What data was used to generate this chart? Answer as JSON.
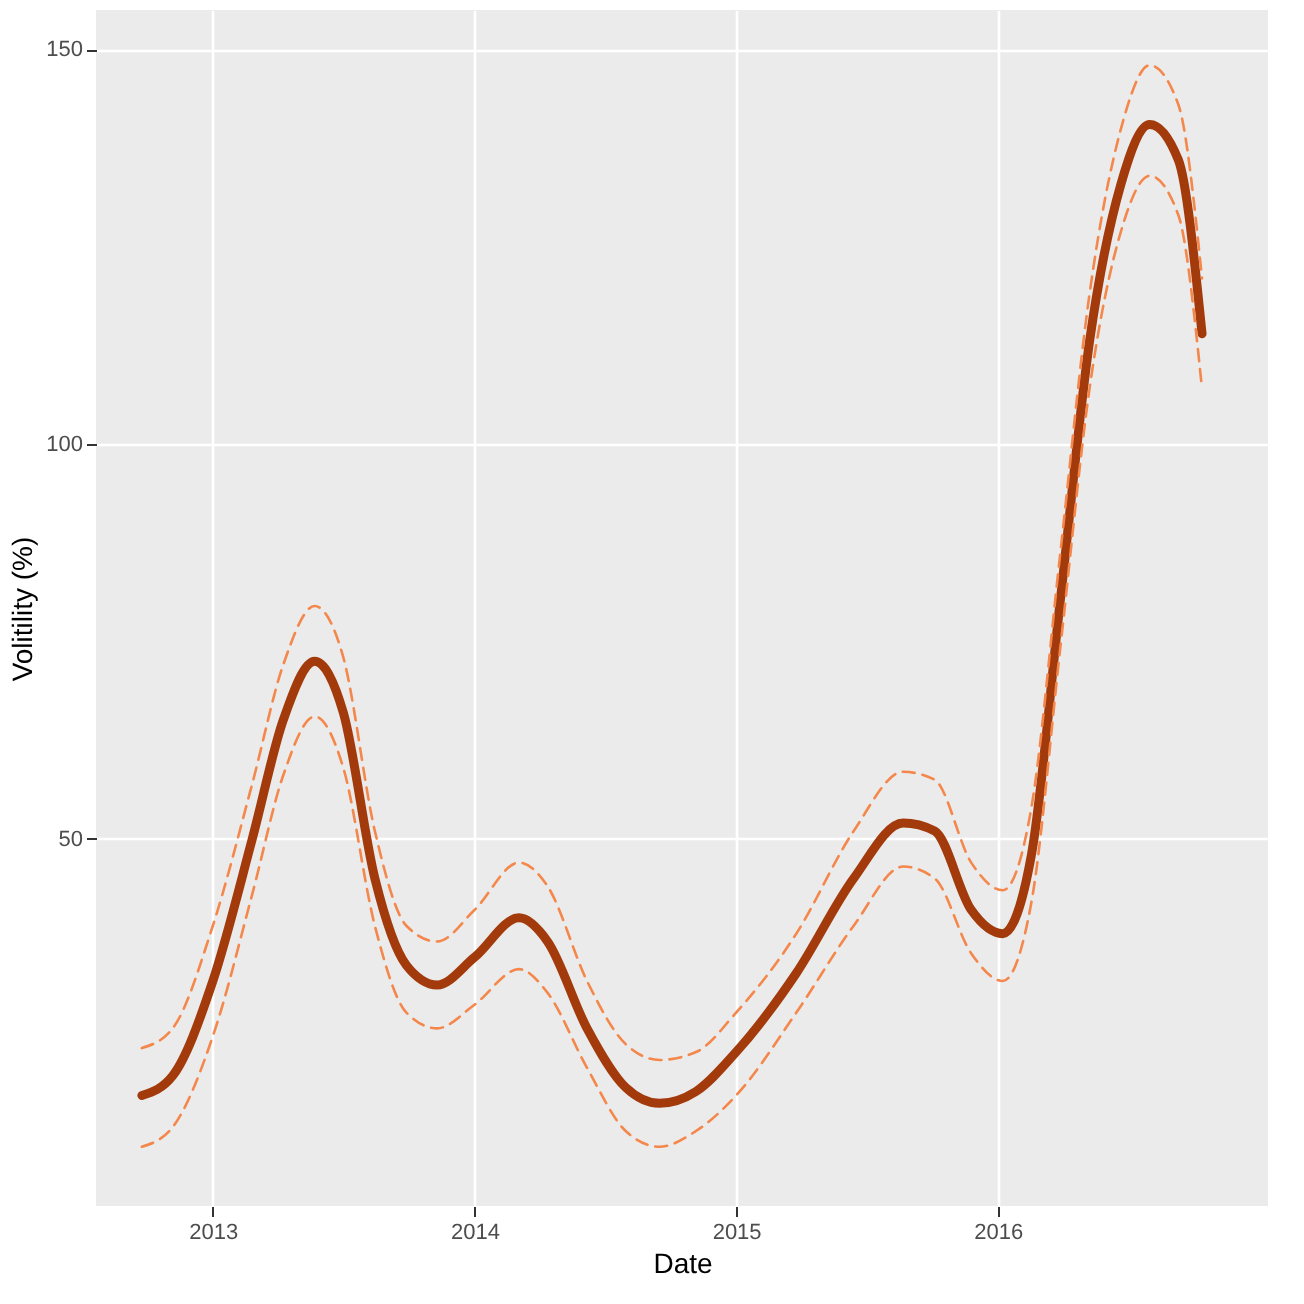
{
  "chart_data": {
    "type": "line",
    "xlabel": "Date",
    "ylabel": "Volitility (%)",
    "xlim": [
      "2012-07-22",
      "2017-01-12"
    ],
    "xticks": [
      {
        "value": "2013",
        "label": "2013"
      },
      {
        "value": "2014",
        "label": "2014"
      },
      {
        "value": "2015",
        "label": "2015"
      },
      {
        "value": "2016",
        "label": "2016"
      }
    ],
    "ylim": [
      3.5,
      155
    ],
    "yticks": [
      50,
      100,
      150
    ],
    "grid": true,
    "line_style": "solid",
    "x": [
      "2012-09-24",
      "2012-11-06",
      "2013-01-01",
      "2013-02-25",
      "2013-04-09",
      "2013-05-23",
      "2013-07-02",
      "2013-08-15",
      "2013-09-28",
      "2013-11-10",
      "2014-01-01",
      "2014-03-04",
      "2014-04-13",
      "2014-06-07",
      "2014-07-31",
      "2014-09-16",
      "2014-11-06",
      "2015-01-01",
      "2015-03-26",
      "2015-06-14",
      "2015-08-22",
      "2015-10-05",
      "2015-11-25",
      "2016-01-08",
      "2016-02-17",
      "2016-03-28",
      "2016-05-08",
      "2016-06-21",
      "2016-07-31",
      "2016-09-09",
      "2016-10-12"
    ],
    "series": [
      {
        "color": "#a33a0c",
        "values": [
          17.5,
          20,
          32,
          50,
          65,
          72.5,
          66,
          45,
          34,
          31.5,
          35,
          40,
          37,
          26,
          18.5,
          16.5,
          18,
          23,
          33,
          45,
          52,
          51,
          41,
          38,
          48,
          80,
          113,
          133,
          140.5,
          136,
          114
        ]
      },
      {
        "color": "#f4874b",
        "line_style": "dashed",
        "values": [
          23.5,
          26,
          39,
          57,
          72,
          79.5,
          73,
          51,
          39,
          37,
          41,
          47,
          44,
          32,
          24,
          22,
          23,
          28,
          38,
          51,
          58.5,
          57.5,
          47,
          43.5,
          54,
          86,
          119,
          140,
          148,
          143,
          121
        ]
      },
      {
        "color": "#f4874b",
        "line_style": "dashed",
        "values": [
          11,
          13.5,
          25,
          43,
          58,
          65.5,
          59,
          39,
          28,
          26,
          29,
          33.5,
          30.5,
          21,
          13,
          11,
          13,
          17.5,
          28,
          39,
          46.5,
          45,
          35.5,
          32,
          42,
          74,
          107,
          127,
          134,
          129,
          107
        ]
      }
    ]
  }
}
